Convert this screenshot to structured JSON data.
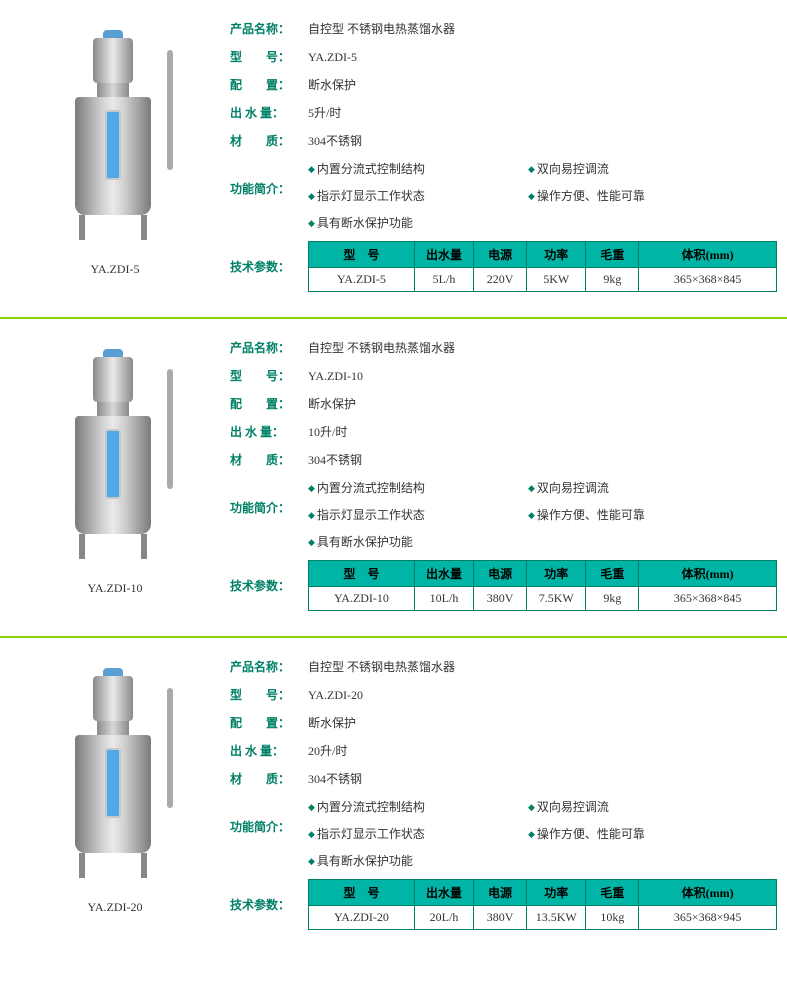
{
  "labels": {
    "product_name": "产品名称：",
    "model": "型　　号：",
    "config": "配　　置：",
    "output": "出 水 量：",
    "material": "材　　质：",
    "features": "功能简介：",
    "tech": "技术参数："
  },
  "table_headers": {
    "model": "型　号",
    "output": "出水量",
    "power": "电源",
    "kw": "功率",
    "weight": "毛重",
    "volume": "体积(mm)"
  },
  "feature_list": [
    "内置分流式控制结构",
    "双向易控调流",
    "指示灯显示工作状态",
    "操作方便、性能可靠",
    "具有断水保护功能"
  ],
  "common": {
    "product_name_value": "自控型  不锈钢电热蒸馏水器",
    "config_value": "断水保护",
    "material_value": "304不锈钢"
  },
  "products": [
    {
      "caption": "YA.ZDI-5",
      "model": "YA.ZDI-5",
      "output": "5升/时",
      "table": {
        "model": "YA.ZDI-5",
        "output": "5L/h",
        "power": "220V",
        "kw": "5KW",
        "weight": "9kg",
        "volume": "365×368×845"
      }
    },
    {
      "caption": "YA.ZDI-10",
      "model": "YA.ZDI-10",
      "output": "10升/时",
      "table": {
        "model": "YA.ZDI-10",
        "output": "10L/h",
        "power": "380V",
        "kw": "7.5KW",
        "weight": "9kg",
        "volume": "365×368×845"
      }
    },
    {
      "caption": "YA.ZDI-20",
      "model": "YA.ZDI-20",
      "output": "20升/时",
      "table": {
        "model": "YA.ZDI-20",
        "output": "20L/h",
        "power": "380V",
        "kw": "13.5KW",
        "weight": "10kg",
        "volume": "365×368×945"
      }
    }
  ],
  "colors": {
    "accent": "#008066",
    "table_header_bg": "#00b5a5",
    "divider": "#8ed000"
  }
}
